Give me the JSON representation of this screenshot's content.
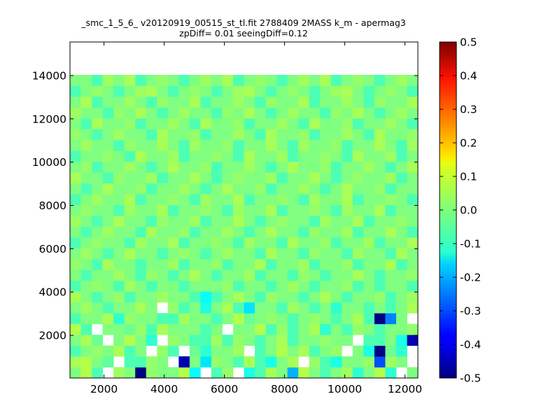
{
  "chart_data": {
    "type": "heatmap",
    "title": "_smc_1_5_6_ v20120919_00515_st_tl.fit 2788409 2MASS k_m - apermag3",
    "subtitle": "zpDiff= 0.01 seeingDiff=0.12",
    "xlabel": "",
    "ylabel": "",
    "xlim": [
      870,
      12430
    ],
    "ylim": [
      30,
      15550
    ],
    "xticks": [
      "2000",
      "4000",
      "6000",
      "8000",
      "10000",
      "12000"
    ],
    "xtick_values": [
      2000,
      4000,
      6000,
      8000,
      10000,
      12000
    ],
    "yticks": [
      "2000",
      "4000",
      "6000",
      "8000",
      "10000",
      "12000",
      "14000"
    ],
    "ytick_values": [
      2000,
      4000,
      6000,
      8000,
      10000,
      12000,
      14000
    ],
    "cell_size": [
      361.25,
      500
    ],
    "colormap": "jet",
    "clim": [
      -0.5,
      0.5
    ],
    "colorbar_ticks": [
      "-0.5",
      "-0.4",
      "-0.3",
      "-0.2",
      "-0.1",
      "0.0",
      "0.1",
      "0.2",
      "0.3",
      "0.4",
      "0.5"
    ],
    "colorbar_values": [
      -0.5,
      -0.4,
      -0.3,
      -0.2,
      -0.1,
      0.0,
      0.1,
      0.2,
      0.3,
      0.4,
      0.5
    ],
    "grid": false,
    "values": [
      [
        0.0,
        0.05,
        -0.05,
        null,
        0.03,
        0.0,
        -0.5,
        0.02,
        0.0,
        0.0,
        0.05,
        -0.12,
        null,
        -0.05,
        0.02,
        null,
        -0.1,
        -0.05,
        0.04,
        0.0,
        -0.2,
        0.05,
        0.0,
        -0.05,
        0.0,
        0.03,
        -0.08,
        0.0,
        0.05,
        -0.08,
        null,
        0.0
      ],
      [
        0.04,
        0.05,
        0.0,
        -0.03,
        null,
        -0.05,
        -0.05,
        0.02,
        0.0,
        null,
        -0.45,
        0.0,
        -0.15,
        0.02,
        0.0,
        -0.05,
        0.04,
        -0.05,
        -0.1,
        0.0,
        0.04,
        null,
        0.02,
        -0.05,
        -0.1,
        0.0,
        0.0,
        0.02,
        -0.3,
        0.03,
        0.0,
        null
      ],
      [
        -0.05,
        0.0,
        0.02,
        0.0,
        0.04,
        -0.05,
        0.0,
        null,
        0.02,
        -0.05,
        null,
        -0.02,
        -0.08,
        0.0,
        0.0,
        0.03,
        null,
        -0.05,
        0.0,
        0.05,
        0.0,
        0.04,
        -0.05,
        0.0,
        0.02,
        null,
        0.0,
        -0.1,
        -0.5,
        -0.02,
        -0.08,
        null
      ],
      [
        0.0,
        0.04,
        -0.02,
        null,
        0.0,
        0.05,
        0.0,
        -0.08,
        null,
        0.02,
        0.0,
        -0.05,
        -0.05,
        0.03,
        -0.05,
        0.02,
        0.0,
        -0.05,
        0.0,
        0.04,
        -0.05,
        0.0,
        0.0,
        0.02,
        0.0,
        0.0,
        null,
        -0.05,
        -0.05,
        0.0,
        -0.1,
        -0.45
      ],
      [
        0.05,
        -0.05,
        null,
        0.0,
        0.0,
        -0.02,
        0.02,
        -0.05,
        0.04,
        0.0,
        0.0,
        0.0,
        -0.05,
        0.0,
        null,
        0.0,
        0.0,
        0.05,
        -0.05,
        0.02,
        -0.05,
        0.0,
        0.04,
        -0.08,
        0.0,
        -0.05,
        0.02,
        0.0,
        -0.05,
        0.0,
        0.0,
        0.02
      ],
      [
        -0.05,
        0.0,
        0.0,
        0.04,
        -0.08,
        0.02,
        0.0,
        0.0,
        -0.05,
        -0.05,
        0.03,
        0.0,
        0.0,
        -0.05,
        0.0,
        0.05,
        -0.02,
        0.0,
        0.02,
        0.0,
        -0.05,
        0.0,
        0.02,
        0.0,
        -0.05,
        0.0,
        0.04,
        -0.05,
        -0.5,
        -0.25,
        0.0,
        null
      ],
      [
        0.0,
        0.03,
        0.0,
        -0.05,
        0.0,
        0.0,
        0.04,
        0.0,
        null,
        0.02,
        -0.05,
        0.0,
        -0.1,
        0.0,
        0.04,
        -0.05,
        -0.15,
        0.0,
        0.0,
        -0.05,
        0.03,
        0.0,
        -0.05,
        0.0,
        -0.08,
        0.0,
        0.0,
        -0.05,
        0.0,
        -0.05,
        0.0,
        0.04
      ],
      [
        0.04,
        0.0,
        -0.05,
        0.0,
        0.02,
        -0.05,
        0.0,
        0.0,
        0.03,
        0.0,
        0.0,
        -0.05,
        -0.12,
        -0.05,
        0.0,
        0.04,
        0.0,
        -0.05,
        0.02,
        0.0,
        0.0,
        -0.05,
        0.0,
        0.04,
        0.0,
        -0.05,
        0.0,
        0.0,
        0.02,
        -0.05,
        0.0,
        0.03
      ],
      [
        -0.05,
        0.0,
        0.02,
        0.0,
        -0.05,
        0.03,
        0.0,
        -0.05,
        0.0,
        0.0,
        -0.05,
        0.0,
        0.0,
        0.0,
        0.02,
        -0.05,
        0.0,
        0.0,
        -0.05,
        0.0,
        0.03,
        0.0,
        -0.05,
        0.0,
        0.0,
        0.02,
        -0.05,
        0.0,
        -0.05,
        0.0,
        0.0,
        -0.05
      ],
      [
        0.0,
        -0.05,
        0.0,
        0.0,
        0.03,
        0.0,
        -0.05,
        0.02,
        0.0,
        -0.05,
        0.0,
        0.04,
        0.0,
        -0.05,
        0.0,
        0.0,
        0.03,
        -0.05,
        0.0,
        0.0,
        -0.05,
        0.02,
        0.0,
        -0.05,
        0.0,
        0.0,
        0.04,
        0.0,
        -0.05,
        0.0,
        0.0,
        0.02
      ],
      [
        0.02,
        0.0,
        -0.05,
        0.04,
        0.0,
        0.0,
        -0.05,
        0.0,
        0.0,
        0.03,
        -0.05,
        0.0,
        0.0,
        0.02,
        -0.05,
        0.0,
        0.0,
        0.04,
        -0.05,
        0.0,
        0.0,
        0.03,
        -0.05,
        0.0,
        0.0,
        0.02,
        -0.05,
        0.0,
        0.0,
        0.04,
        -0.05,
        0.0
      ],
      [
        0.0,
        0.03,
        0.0,
        -0.05,
        0.0,
        0.04,
        0.0,
        0.0,
        -0.05,
        0.0,
        0.02,
        0.0,
        -0.05,
        0.0,
        0.03,
        0.0,
        0.0,
        -0.05,
        0.04,
        0.0,
        0.0,
        -0.05,
        0.02,
        0.0,
        0.0,
        -0.05,
        0.03,
        0.0,
        0.0,
        -0.05,
        0.04,
        0.0
      ],
      [
        -0.05,
        0.0,
        0.02,
        0.0,
        0.0,
        -0.05,
        0.03,
        0.0,
        0.0,
        0.04,
        -0.05,
        0.0,
        0.0,
        0.02,
        0.0,
        -0.05,
        0.03,
        0.0,
        0.0,
        -0.05,
        0.04,
        0.0,
        0.0,
        0.02,
        -0.05,
        0.0,
        0.0,
        0.03,
        -0.05,
        0.0,
        0.0,
        0.04
      ],
      [
        0.0,
        -0.05,
        0.0,
        0.03,
        0.0,
        0.0,
        -0.05,
        0.04,
        0.0,
        0.0,
        0.02,
        -0.05,
        0.0,
        0.0,
        0.03,
        0.0,
        -0.05,
        0.0,
        0.04,
        0.0,
        0.0,
        -0.05,
        0.02,
        0.0,
        0.0,
        0.03,
        -0.05,
        0.0,
        0.0,
        0.04,
        0.0,
        -0.05
      ],
      [
        0.03,
        0.0,
        -0.05,
        0.0,
        0.04,
        0.0,
        0.0,
        -0.05,
        0.02,
        0.0,
        0.0,
        0.03,
        -0.05,
        0.0,
        0.0,
        0.04,
        0.0,
        -0.05,
        0.0,
        0.02,
        0.0,
        0.0,
        -0.05,
        0.03,
        0.0,
        0.0,
        0.04,
        -0.05,
        0.0,
        0.0,
        0.02,
        0.0
      ],
      [
        0.0,
        0.02,
        0.0,
        0.0,
        -0.05,
        0.03,
        0.0,
        0.0,
        0.04,
        -0.05,
        0.0,
        0.0,
        0.02,
        0.0,
        -0.05,
        0.03,
        0.0,
        0.0,
        0.04,
        -0.05,
        0.0,
        0.0,
        0.02,
        0.0,
        -0.05,
        0.03,
        0.0,
        0.0,
        0.04,
        -0.05,
        0.0,
        0.0
      ],
      [
        -0.05,
        0.0,
        0.03,
        0.0,
        0.0,
        0.04,
        -0.05,
        0.0,
        0.0,
        0.02,
        0.0,
        -0.05,
        0.03,
        0.0,
        0.0,
        0.04,
        -0.05,
        0.0,
        0.0,
        0.02,
        0.0,
        -0.05,
        0.03,
        0.0,
        0.0,
        0.04,
        -0.05,
        0.0,
        0.0,
        0.02,
        0.0,
        -0.05
      ],
      [
        0.0,
        -0.05,
        0.0,
        0.04,
        0.0,
        0.0,
        0.02,
        -0.05,
        0.0,
        0.0,
        0.03,
        0.0,
        -0.05,
        0.0,
        0.04,
        0.0,
        0.0,
        0.02,
        -0.05,
        0.0,
        0.0,
        0.03,
        0.0,
        -0.05,
        0.0,
        0.04,
        0.0,
        0.0,
        0.02,
        -0.05,
        0.0,
        0.0
      ],
      [
        0.04,
        0.0,
        0.0,
        -0.05,
        0.02,
        0.0,
        0.0,
        0.03,
        -0.05,
        0.0,
        0.0,
        0.04,
        0.0,
        -0.05,
        0.0,
        0.02,
        0.0,
        0.0,
        0.03,
        -0.05,
        0.0,
        0.0,
        0.04,
        0.0,
        -0.05,
        0.0,
        0.02,
        0.0,
        0.0,
        0.03,
        -0.05,
        0.0
      ],
      [
        0.0,
        0.02,
        -0.05,
        0.0,
        0.0,
        0.03,
        0.0,
        -0.05,
        0.0,
        0.04,
        0.0,
        0.0,
        0.02,
        -0.05,
        0.0,
        0.0,
        0.03,
        0.0,
        -0.05,
        0.0,
        0.04,
        0.0,
        0.0,
        0.02,
        -0.05,
        0.0,
        0.0,
        0.03,
        0.0,
        -0.05,
        0.0,
        0.04
      ],
      [
        -0.05,
        0.0,
        0.0,
        0.02,
        0.0,
        -0.05,
        0.04,
        0.0,
        0.0,
        0.03,
        -0.05,
        0.0,
        0.0,
        0.02,
        0.0,
        -0.05,
        0.04,
        0.0,
        0.0,
        0.03,
        -0.05,
        0.0,
        0.0,
        0.02,
        0.0,
        -0.05,
        0.04,
        0.0,
        0.0,
        0.03,
        -0.05,
        0.0
      ],
      [
        0.0,
        0.03,
        0.0,
        0.0,
        -0.05,
        0.02,
        0.0,
        0.0,
        0.04,
        0.0,
        -0.05,
        0.03,
        0.0,
        0.0,
        0.02,
        -0.05,
        0.0,
        0.0,
        0.04,
        0.0,
        -0.05,
        0.03,
        0.0,
        0.0,
        0.02,
        -0.05,
        0.0,
        0.0,
        0.04,
        0.0,
        -0.05,
        0.03
      ],
      [
        0.02,
        0.0,
        -0.05,
        0.0,
        0.03,
        0.0,
        0.0,
        -0.05,
        0.04,
        0.0,
        0.0,
        0.02,
        -0.05,
        0.0,
        0.0,
        0.03,
        0.0,
        -0.05,
        0.04,
        0.0,
        0.0,
        0.02,
        -0.05,
        0.0,
        0.0,
        0.03,
        0.0,
        -0.05,
        0.04,
        0.0,
        0.0,
        0.02
      ],
      [
        0.0,
        -0.05,
        0.04,
        0.0,
        0.0,
        0.02,
        -0.05,
        0.0,
        0.0,
        0.03,
        0.0,
        -0.05,
        0.04,
        0.0,
        0.0,
        0.02,
        -0.05,
        0.0,
        0.0,
        0.03,
        0.0,
        -0.05,
        0.04,
        0.0,
        0.0,
        0.02,
        -0.05,
        0.0,
        0.0,
        0.03,
        0.0,
        -0.05
      ],
      [
        0.03,
        0.0,
        0.0,
        -0.05,
        0.02,
        0.0,
        0.04,
        0.0,
        -0.05,
        0.0,
        0.03,
        0.0,
        0.0,
        -0.05,
        0.02,
        0.0,
        0.04,
        0.0,
        -0.05,
        0.0,
        0.03,
        0.0,
        0.0,
        -0.05,
        0.02,
        0.0,
        0.04,
        0.0,
        -0.05,
        0.0,
        0.03,
        0.0
      ],
      [
        0.0,
        0.04,
        -0.05,
        0.0,
        0.0,
        0.03,
        0.0,
        -0.05,
        0.02,
        0.0,
        0.0,
        0.04,
        -0.05,
        0.0,
        0.0,
        0.03,
        0.0,
        -0.05,
        0.02,
        0.0,
        0.0,
        0.04,
        -0.05,
        0.0,
        0.0,
        0.03,
        0.0,
        -0.05,
        0.02,
        0.0,
        0.0,
        0.04
      ],
      [
        -0.05,
        0.0,
        0.02,
        0.0,
        -0.05,
        0.0,
        0.03,
        0.04,
        0.0,
        -0.05,
        0.0,
        0.02,
        0.0,
        -0.05,
        0.0,
        0.03,
        0.04,
        0.0,
        -0.05,
        0.0,
        0.02,
        0.0,
        -0.05,
        0.0,
        0.03,
        0.04,
        0.0,
        -0.05,
        0.0,
        0.02,
        0.0,
        -0.05
      ],
      [
        0.0,
        0.0,
        -0.05,
        0.03,
        0.0,
        0.04,
        -0.05,
        0.0,
        0.02,
        0.0,
        -0.05,
        0.0,
        0.03,
        0.0,
        0.04,
        -0.05,
        0.0,
        0.02,
        0.0,
        -0.05,
        0.0,
        0.03,
        0.0,
        0.04,
        -0.05,
        0.0,
        0.02,
        0.0,
        -0.05,
        0.0,
        0.03,
        0.0
      ]
    ]
  }
}
